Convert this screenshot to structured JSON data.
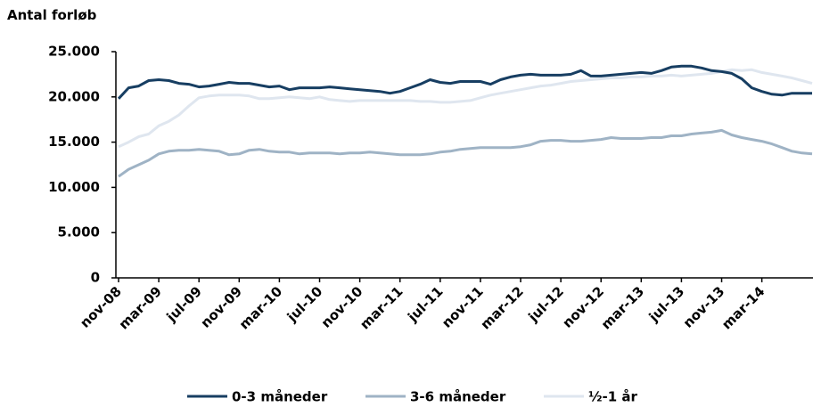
{
  "chart_data": {
    "type": "line",
    "y_axis_title": "Antal forløb",
    "categories": [
      "nov-08",
      null,
      null,
      null,
      "mar-09",
      null,
      null,
      null,
      "jul-09",
      null,
      null,
      null,
      "nov-09",
      null,
      null,
      null,
      "mar-10",
      null,
      null,
      null,
      "jul-10",
      null,
      null,
      null,
      "nov-10",
      null,
      null,
      null,
      "mar-11",
      null,
      null,
      null,
      "jul-11",
      null,
      null,
      null,
      "nov-11",
      null,
      null,
      null,
      "mar-12",
      null,
      null,
      null,
      "jul-12",
      null,
      null,
      null,
      "nov-12",
      null,
      null,
      null,
      "mar-13",
      null,
      null,
      null,
      "jul-13",
      null,
      null,
      null,
      "nov-13",
      null,
      null,
      null,
      "mar-14",
      null,
      null,
      null,
      null,
      null
    ],
    "series": [
      {
        "name": "0-3 måneder",
        "color": "#173e62",
        "values": [
          19800,
          21000,
          21200,
          21800,
          21900,
          21800,
          21500,
          21400,
          21100,
          21200,
          21400,
          21600,
          21500,
          21500,
          21300,
          21100,
          21200,
          20800,
          21000,
          21000,
          21000,
          21100,
          21000,
          20900,
          20800,
          20700,
          20600,
          20400,
          20600,
          21000,
          21400,
          21900,
          21600,
          21500,
          21700,
          21700,
          21700,
          21400,
          21900,
          22200,
          22400,
          22500,
          22400,
          22400,
          22400,
          22500,
          22900,
          22300,
          22300,
          22400,
          22500,
          22600,
          22700,
          22600,
          22900,
          23300,
          23400,
          23400,
          23200,
          22900,
          22800,
          22600,
          22000,
          21000,
          20600,
          20300,
          20200,
          20400,
          20400,
          20400
        ]
      },
      {
        "name": "3-6 måneder",
        "color": "#9fb3c5",
        "values": [
          11200,
          12000,
          12500,
          13000,
          13700,
          14000,
          14100,
          14100,
          14200,
          14100,
          14000,
          13600,
          13700,
          14100,
          14200,
          14000,
          13900,
          13900,
          13700,
          13800,
          13800,
          13800,
          13700,
          13800,
          13800,
          13900,
          13800,
          13700,
          13600,
          13600,
          13600,
          13700,
          13900,
          14000,
          14200,
          14300,
          14400,
          14400,
          14400,
          14400,
          14500,
          14700,
          15100,
          15200,
          15200,
          15100,
          15100,
          15200,
          15300,
          15500,
          15400,
          15400,
          15400,
          15500,
          15500,
          15700,
          15700,
          15900,
          16000,
          16100,
          16300,
          15800,
          15500,
          15300,
          15100,
          14800,
          14400,
          14000,
          13800,
          13700
        ]
      },
      {
        "name": "½-1 år",
        "color": "#dfe6ef",
        "values": [
          14500,
          15000,
          15600,
          15900,
          16800,
          17300,
          18000,
          19000,
          19900,
          20100,
          20200,
          20200,
          20200,
          20100,
          19800,
          19800,
          19900,
          20000,
          19900,
          19800,
          20000,
          19700,
          19600,
          19500,
          19600,
          19600,
          19600,
          19600,
          19600,
          19600,
          19500,
          19500,
          19400,
          19400,
          19500,
          19600,
          19900,
          20200,
          20400,
          20600,
          20800,
          21000,
          21200,
          21300,
          21500,
          21700,
          21800,
          21900,
          22000,
          22100,
          22100,
          22200,
          22200,
          22300,
          22300,
          22400,
          22300,
          22400,
          22500,
          22600,
          22800,
          23000,
          22900,
          23000,
          22700,
          22500,
          22300,
          22100,
          21800,
          21500
        ]
      }
    ],
    "ylim": [
      0,
      25000
    ],
    "yticks": [
      0,
      {
        "value": 5000,
        "label": "5.000"
      },
      {
        "value": 10000,
        "label": "10.000"
      },
      {
        "value": 15000,
        "label": "15.000"
      },
      {
        "value": 20000,
        "label": "20.000"
      },
      {
        "value": 25000,
        "label": "25.000"
      }
    ],
    "legend": "bottom"
  }
}
